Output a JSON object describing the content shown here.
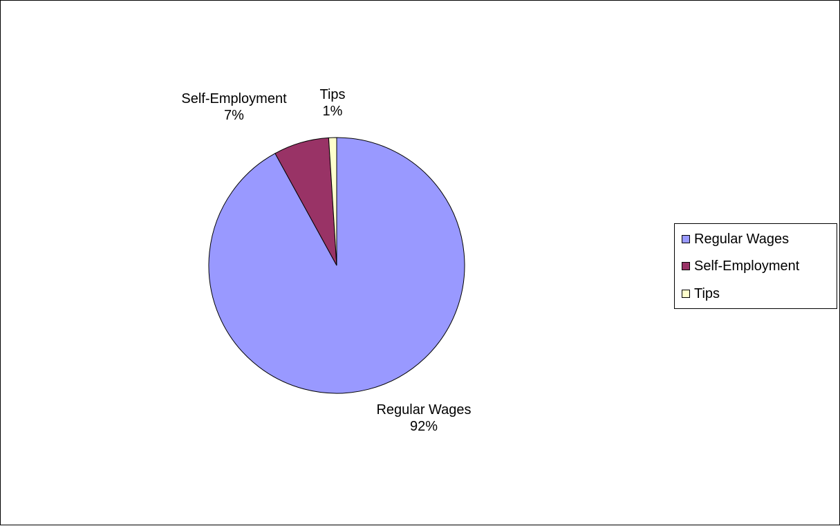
{
  "chart_data": {
    "type": "pie",
    "title": "",
    "slices": [
      {
        "name": "Regular Wages",
        "value": 92,
        "percent_label": "92%",
        "color": "#9999FF"
      },
      {
        "name": "Self-Employment",
        "value": 7,
        "percent_label": "7%",
        "color": "#993366"
      },
      {
        "name": "Tips",
        "value": 1,
        "percent_label": "1%",
        "color": "#FFFFCC"
      }
    ],
    "start_angle": "12 o'clock",
    "direction": "clockwise",
    "legend_position": "right"
  }
}
